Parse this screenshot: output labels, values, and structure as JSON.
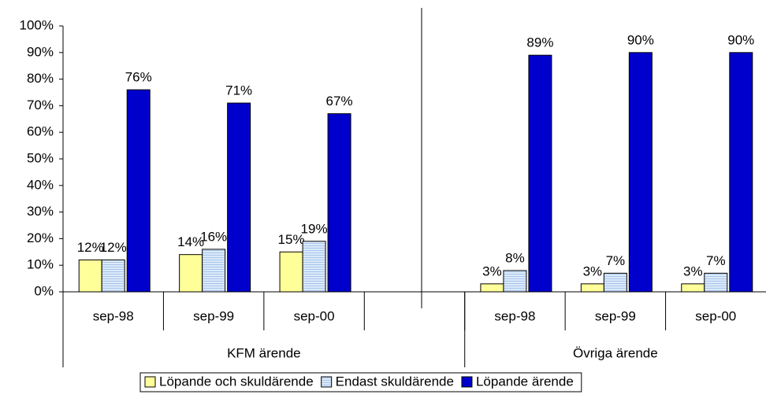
{
  "chart_data": {
    "type": "bar",
    "categories": [
      "sep-98",
      "sep-99",
      "sep-00",
      null,
      "sep-98",
      "sep-99",
      "sep-00"
    ],
    "groups": [
      {
        "name": "KFM ärende",
        "count": 4
      },
      {
        "name": "Övriga ärende",
        "count": 3
      }
    ],
    "series": [
      {
        "name": "Löpande och skuldärende",
        "color": "#ffff99",
        "values": [
          12,
          14,
          15,
          null,
          3,
          3,
          3
        ],
        "value_labels": [
          "12%",
          "14%",
          "15%",
          null,
          "3%",
          "3%",
          "3%"
        ]
      },
      {
        "name": "Endast skuldärende",
        "color": "#dbe9f9",
        "values": [
          12,
          16,
          19,
          null,
          8,
          7,
          7
        ],
        "value_labels": [
          "12%",
          "16%",
          "19%",
          null,
          "8%",
          "7%",
          "7%"
        ]
      },
      {
        "name": "Löpande ärende",
        "color": "#0000cc",
        "values": [
          76,
          71,
          67,
          null,
          89,
          90,
          90
        ],
        "value_labels": [
          "76%",
          "71%",
          "67%",
          null,
          "89%",
          "90%",
          "90%"
        ]
      }
    ],
    "ylim": [
      0,
      100
    ],
    "yticks": [
      {
        "value": 0,
        "label": "0%"
      },
      {
        "value": 10,
        "label": "10%"
      },
      {
        "value": 20,
        "label": "20%"
      },
      {
        "value": 30,
        "label": "30%"
      },
      {
        "value": 40,
        "label": "40%"
      },
      {
        "value": 50,
        "label": "50%"
      },
      {
        "value": 60,
        "label": "60%"
      },
      {
        "value": 70,
        "label": "70%"
      },
      {
        "value": 80,
        "label": "80%"
      },
      {
        "value": 90,
        "label": "90%"
      },
      {
        "value": 100,
        "label": "100%"
      }
    ],
    "grid": false,
    "legend": "bottom"
  }
}
